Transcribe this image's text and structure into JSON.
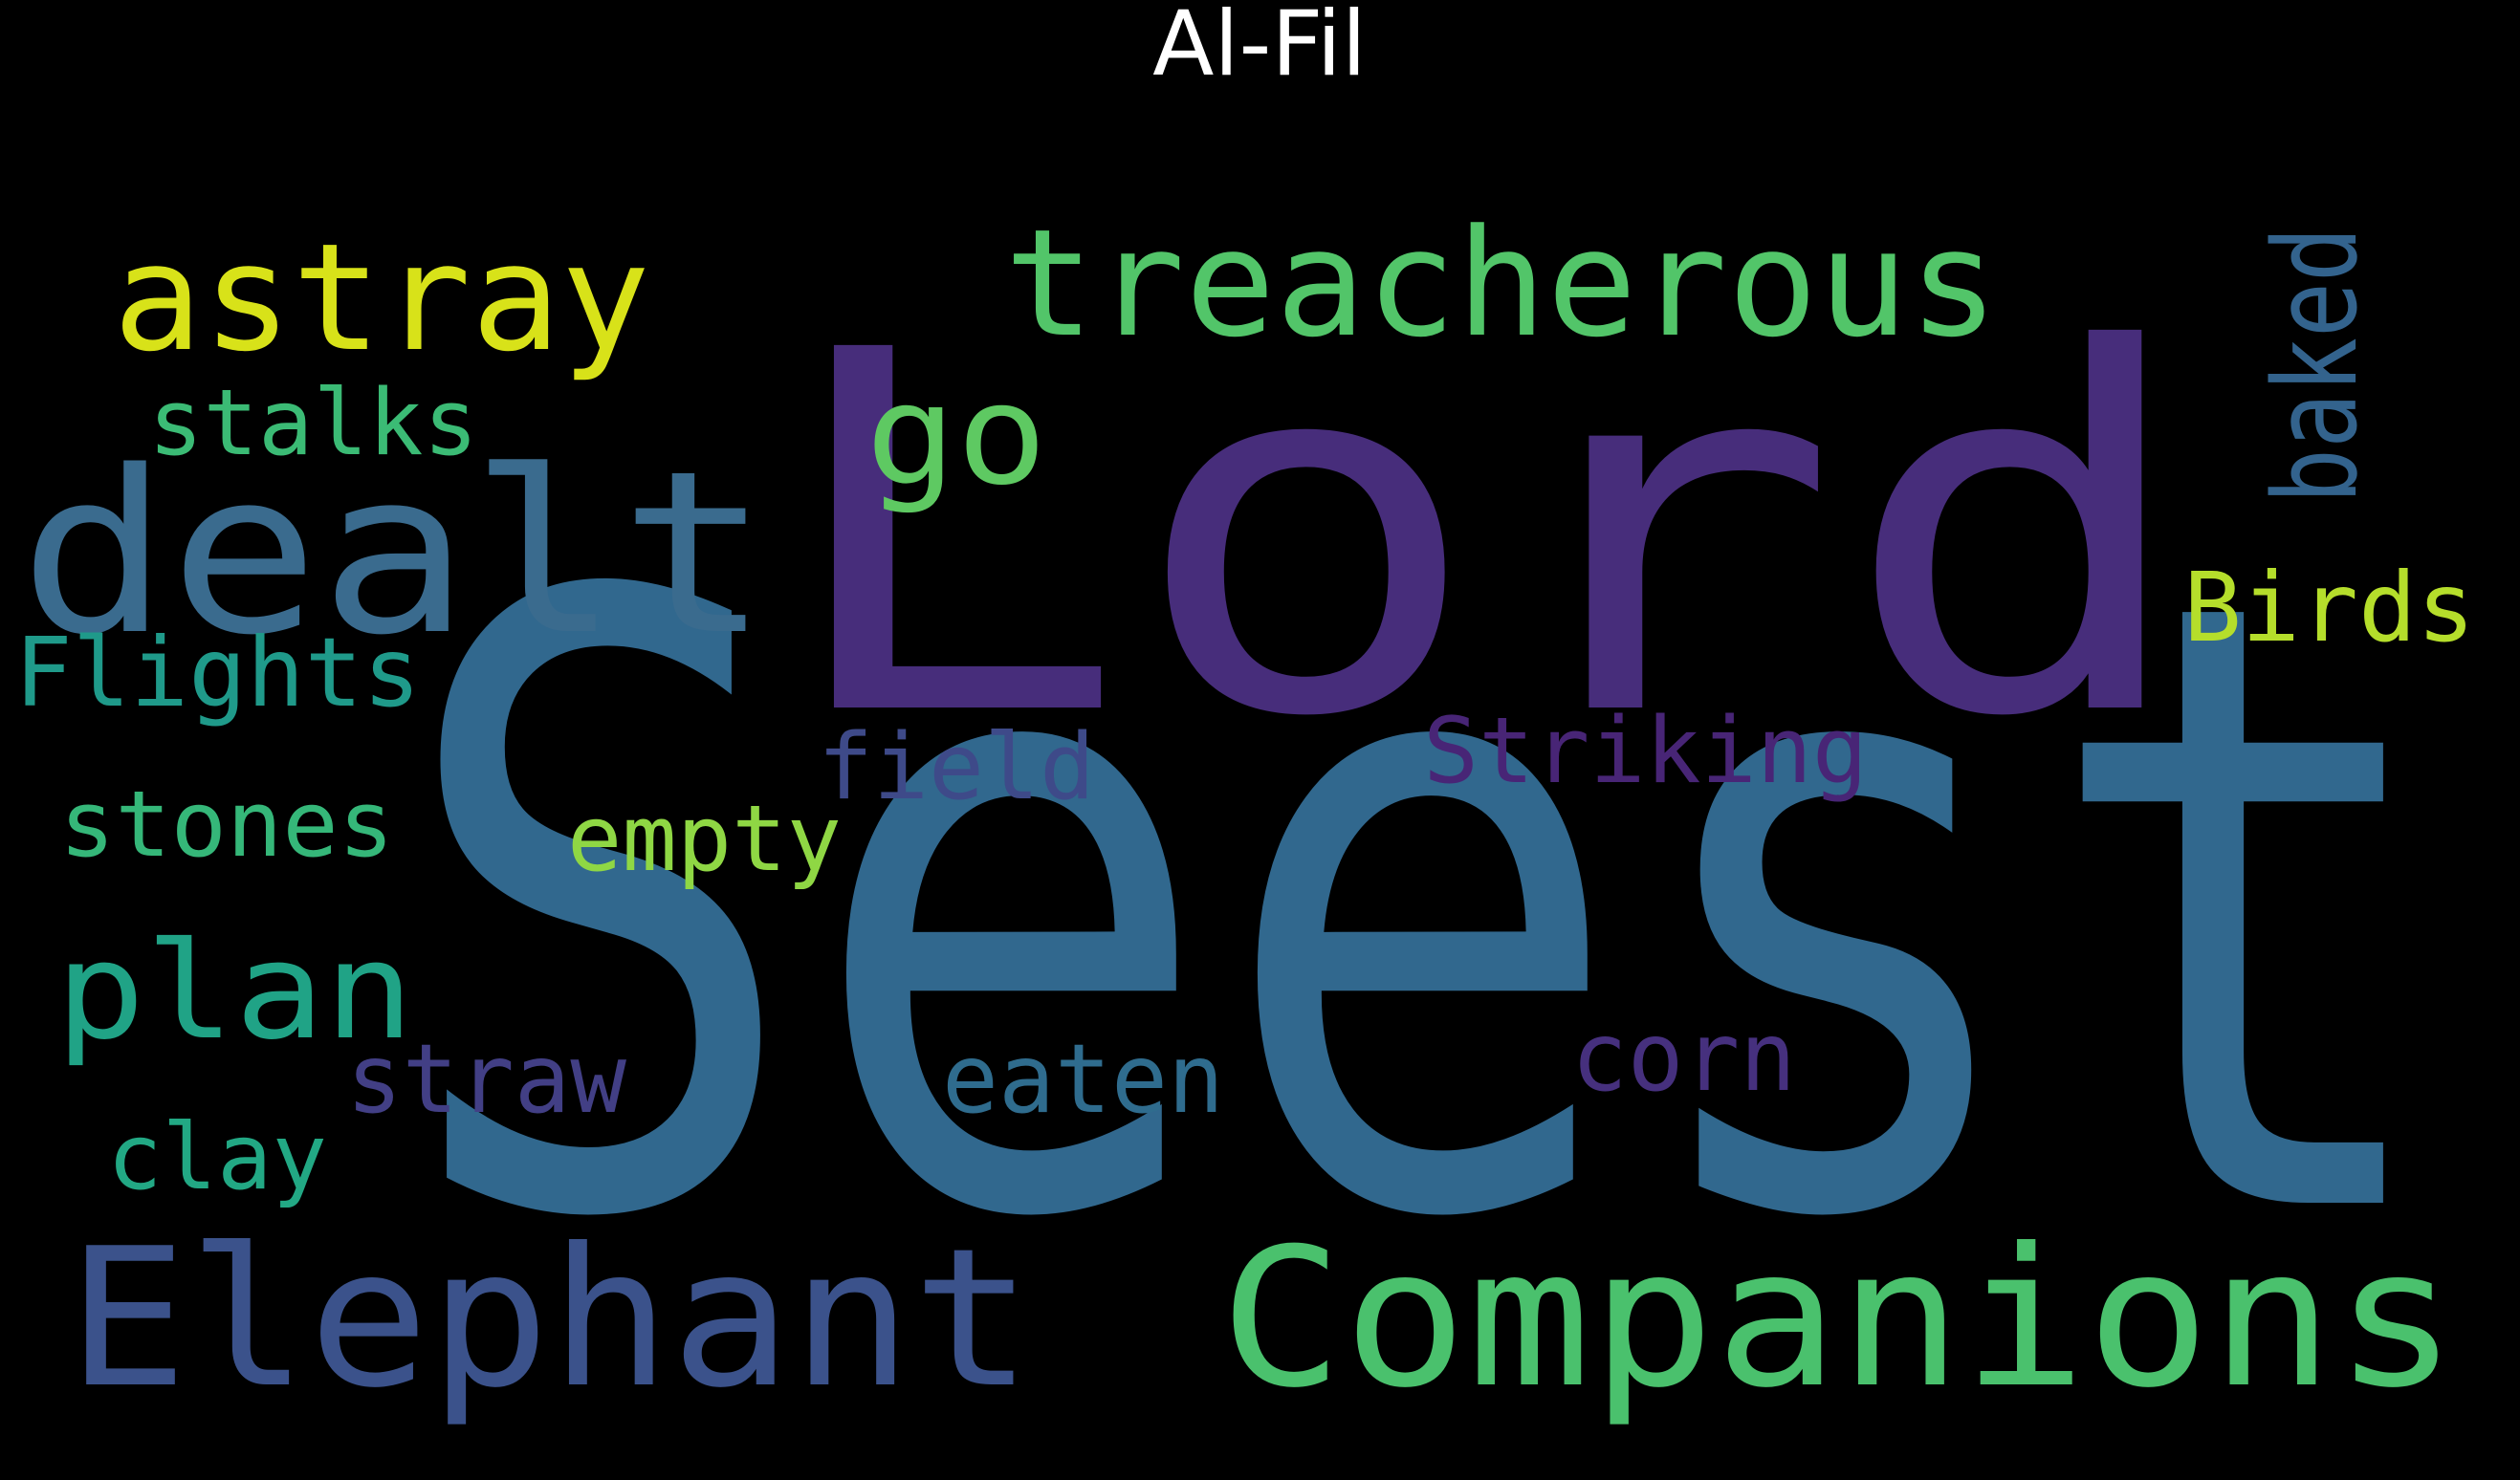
{
  "title": "Al-Fil",
  "background_color": "#000000",
  "title_color": "#ffffff",
  "words": [
    {
      "text": "Seest",
      "color": "#31688e",
      "orientation": "horizontal"
    },
    {
      "text": "Lord",
      "color": "#472d7b",
      "orientation": "horizontal"
    },
    {
      "text": "Companions",
      "color": "#4ac16d",
      "orientation": "horizontal"
    },
    {
      "text": "Elephant",
      "color": "#3b528b",
      "orientation": "horizontal"
    },
    {
      "text": "dealt",
      "color": "#3a6b8e",
      "orientation": "horizontal"
    },
    {
      "text": "treacherous",
      "color": "#52c569",
      "orientation": "horizontal"
    },
    {
      "text": "astray",
      "color": "#d8e219",
      "orientation": "horizontal"
    },
    {
      "text": "plan",
      "color": "#20a386",
      "orientation": "horizontal"
    },
    {
      "text": "go",
      "color": "#5ec962",
      "orientation": "horizontal"
    },
    {
      "text": "baked",
      "color": "#33638d",
      "orientation": "vertical"
    },
    {
      "text": "Birds",
      "color": "#b5de2b",
      "orientation": "horizontal"
    },
    {
      "text": "stalks",
      "color": "#3bbb75",
      "orientation": "horizontal"
    },
    {
      "text": "Flights",
      "color": "#1f9a8a",
      "orientation": "horizontal"
    },
    {
      "text": "field",
      "color": "#3e4a89",
      "orientation": "horizontal"
    },
    {
      "text": "Striking",
      "color": "#482576",
      "orientation": "horizontal"
    },
    {
      "text": "stones",
      "color": "#35b779",
      "orientation": "horizontal"
    },
    {
      "text": "empty",
      "color": "#8fd744",
      "orientation": "horizontal"
    },
    {
      "text": "corn",
      "color": "#46307e",
      "orientation": "horizontal"
    },
    {
      "text": "straw",
      "color": "#423f85",
      "orientation": "horizontal"
    },
    {
      "text": "eaten",
      "color": "#2f6c8e",
      "orientation": "horizontal"
    },
    {
      "text": "clay",
      "color": "#22a884",
      "orientation": "horizontal"
    }
  ]
}
